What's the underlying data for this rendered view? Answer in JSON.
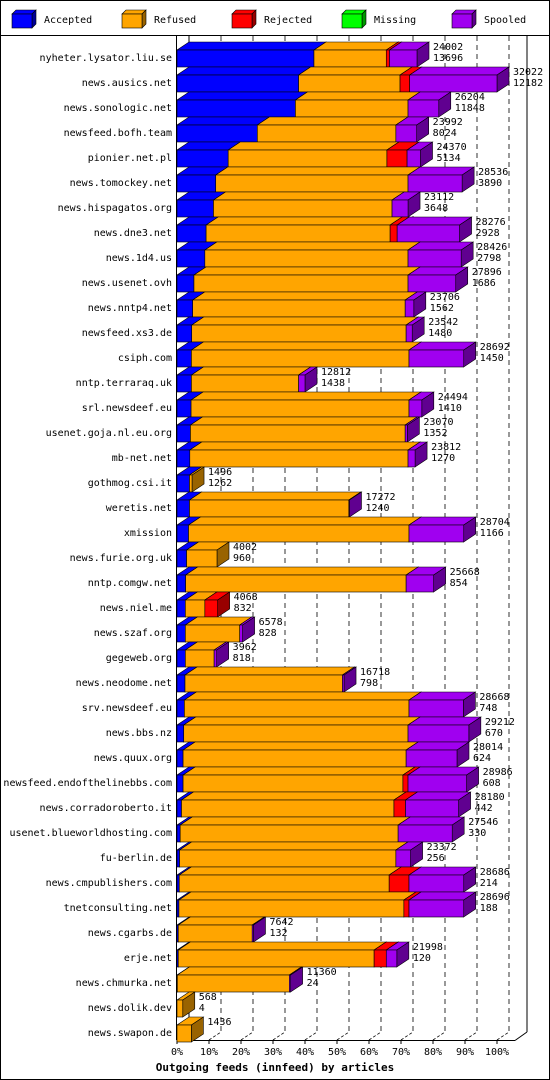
{
  "chart_data": {
    "type": "bar",
    "orientation": "horizontal",
    "stacked": true,
    "title": "Outgoing feeds (innfeed) by articles",
    "categories": [
      "nyheter.lysator.liu.se",
      "news.ausics.net",
      "news.sonologic.net",
      "newsfeed.bofh.team",
      "pionier.net.pl",
      "news.tomockey.net",
      "news.hispagatos.org",
      "news.dne3.net",
      "news.1d4.us",
      "news.usenet.ovh",
      "news.nntp4.net",
      "newsfeed.xs3.de",
      "csiph.com",
      "nntp.terraraq.uk",
      "srl.newsdeef.eu",
      "usenet.goja.nl.eu.org",
      "mb-net.net",
      "gothmog.csi.it",
      "weretis.net",
      "xmission",
      "news.furie.org.uk",
      "nntp.comgw.net",
      "news.niel.me",
      "news.szaf.org",
      "gegeweb.org",
      "news.neodome.net",
      "srv.newsdeef.eu",
      "news.bbs.nz",
      "news.quux.org",
      "newsfeed.endofthelinebbs.com",
      "news.corradoroberto.it",
      "usenet.blueworldhosting.com",
      "fu-berlin.de",
      "news.cmpublishers.com",
      "tnetconsulting.net",
      "news.cgarbs.de",
      "erje.net",
      "news.chmurka.net",
      "news.dolik.dev",
      "news.swapon.de"
    ],
    "series": [
      {
        "name": "Accepted",
        "color": "#0000ff",
        "values": [
          42.8,
          38.0,
          37.0,
          25.1,
          16.0,
          12.1,
          11.4,
          9.1,
          8.7,
          5.3,
          4.9,
          4.6,
          4.5,
          4.5,
          4.4,
          4.2,
          4.0,
          3.9,
          3.9,
          3.6,
          3.0,
          2.7,
          2.6,
          2.6,
          2.6,
          2.5,
          2.3,
          2.1,
          1.9,
          1.9,
          1.4,
          1.0,
          0.8,
          0.7,
          0.6,
          0.4,
          0.4,
          0.1,
          0.0,
          0.0
        ]
      },
      {
        "name": "Refused",
        "color": "#ffa500",
        "values": [
          22.6,
          31.7,
          35.2,
          43.3,
          49.6,
          60.1,
          55.8,
          57.5,
          63.5,
          66.9,
          66.4,
          67.0,
          68.0,
          33.5,
          68.1,
          67.1,
          68.2,
          0.8,
          49.8,
          68.9,
          9.5,
          68.9,
          6.1,
          17.0,
          9.0,
          49.2,
          70.2,
          70.1,
          69.7,
          68.7,
          66.4,
          68.1,
          67.6,
          65.6,
          70.3,
          23.1,
          61.2,
          35.0,
          1.8,
          4.5
        ]
      },
      {
        "name": "Rejected",
        "color": "#ff0000",
        "values": [
          1.0,
          3.0,
          0,
          0,
          6.3,
          0,
          0,
          2.2,
          0,
          0,
          0,
          0,
          0,
          0,
          0,
          0,
          0,
          0,
          0,
          0,
          0,
          0,
          4.0,
          0,
          0,
          0,
          0,
          0,
          0,
          1.6,
          3.6,
          0,
          0,
          6.2,
          1.6,
          0,
          3.8,
          0,
          0,
          0
        ]
      },
      {
        "name": "Missing",
        "color": "#00ff00",
        "values": [
          0,
          0,
          0,
          0,
          0,
          0,
          0,
          0,
          0,
          0,
          0,
          0,
          0,
          0,
          0,
          0,
          0,
          0,
          0,
          0,
          0,
          0,
          0,
          0,
          0,
          0,
          0,
          0,
          0,
          0,
          0,
          0,
          0,
          0,
          0,
          0,
          0,
          0,
          0,
          0
        ]
      },
      {
        "name": "Spooled",
        "color": "#a000f0",
        "values": [
          8.6,
          27.3,
          9.6,
          6.5,
          4.2,
          16.9,
          5.0,
          19.5,
          16.6,
          14.9,
          2.7,
          1.9,
          17.1,
          2.0,
          4.0,
          0.7,
          2.2,
          0,
          0.2,
          17.1,
          0,
          8.6,
          0,
          0.9,
          0.8,
          0.5,
          17.0,
          19.0,
          15.9,
          18.3,
          16.6,
          16.9,
          4.6,
          17.1,
          17.1,
          0.4,
          3.3,
          0.4,
          0,
          0
        ]
      }
    ],
    "article_totals": [
      24002,
      32022,
      26204,
      23992,
      24370,
      28536,
      23112,
      28276,
      28426,
      27896,
      23706,
      23542,
      28692,
      12812,
      24494,
      23070,
      23812,
      1496,
      17272,
      28704,
      4002,
      25668,
      4068,
      6578,
      3962,
      16718,
      28668,
      29212,
      28014,
      28986,
      28180,
      27546,
      23372,
      28686,
      28696,
      7642,
      21998,
      11360,
      568,
      1436
    ],
    "article_accepted": [
      13696,
      12182,
      11848,
      8024,
      5134,
      3890,
      3648,
      2928,
      2798,
      1686,
      1562,
      1480,
      1450,
      1438,
      1410,
      1352,
      1270,
      1262,
      1240,
      1166,
      960,
      854,
      832,
      828,
      818,
      798,
      748,
      670,
      624,
      608,
      442,
      330,
      256,
      214,
      188,
      132,
      120,
      24,
      4,
      null
    ],
    "xlim": [
      0,
      100
    ],
    "xticks": [
      {
        "value": 0,
        "label": "0%"
      },
      {
        "value": 10,
        "label": "10%"
      },
      {
        "value": 20,
        "label": "20%"
      },
      {
        "value": 30,
        "label": "30%"
      },
      {
        "value": 40,
        "label": "40%"
      },
      {
        "value": 50,
        "label": "50%"
      },
      {
        "value": 60,
        "label": "60%"
      },
      {
        "value": 70,
        "label": "70%"
      },
      {
        "value": 80,
        "label": "80%"
      },
      {
        "value": 90,
        "label": "90%"
      },
      {
        "value": 100,
        "label": "100%"
      }
    ],
    "grid": true
  }
}
